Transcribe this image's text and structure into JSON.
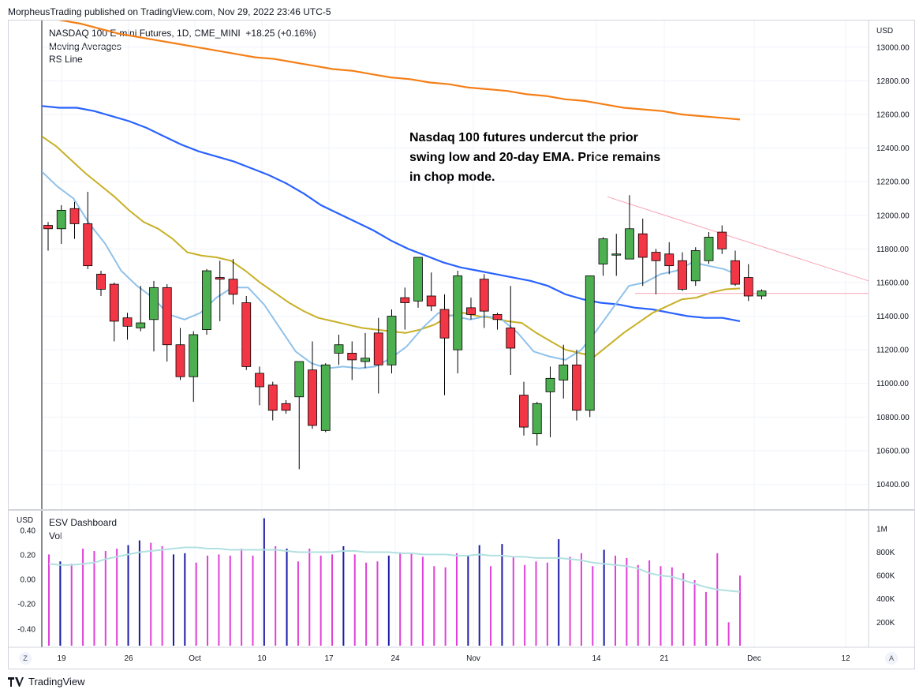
{
  "header": {
    "published": "MorpheusTrading published on TradingView.com, Nov 29, 2022 23:46 UTC-5"
  },
  "legend": {
    "symbol": "NASDAQ 100 E-mini Futures, 1D, CME_MINI",
    "change": "+18.25 (+0.16%)",
    "line2": "Moving Averages",
    "line3": "RS Line"
  },
  "annotation": "Nasdaq 100 futures undercut the prior\nswing low and 20-day EMA.  Price remains\nin chop mode.",
  "lower_legend": {
    "line1": "ESV Dashboard",
    "line2": "Vol"
  },
  "price_currency": "USD",
  "lower_currency": "USD",
  "footer": {
    "brand": "TradingView",
    "left_btn": "Z",
    "right_btn": "A"
  },
  "colors": {
    "up": "#4caf50",
    "down": "#f23645",
    "ema200": "#f57f17",
    "sma50": "#2962ff",
    "ema20": "#c8b026",
    "sma10": "#90c2ea",
    "vol_up": "#1a1aa6",
    "vol_down": "#e040d8",
    "vol_ma": "#b2e0e0",
    "trend": "#f8a4b4"
  },
  "chart_data": [
    {
      "type": "candlestick",
      "x_ticks": [
        "19",
        "26",
        "Oct",
        "10",
        "17",
        "24",
        "Nov",
        "14",
        "21",
        "Dec",
        "12"
      ],
      "y_ticks": [
        "13000.00",
        "12800.00",
        "12600.00",
        "12400.00",
        "12200.00",
        "12000.00",
        "11800.00",
        "11600.00",
        "11400.00",
        "11200.00",
        "11000.00",
        "10800.00",
        "10600.00",
        "10400.00"
      ],
      "ylim": [
        10300,
        13150
      ],
      "candles": [
        [
          11940,
          11960,
          11790,
          11920
        ],
        [
          11920,
          12060,
          11830,
          12030
        ],
        [
          12040,
          12080,
          11860,
          11950
        ],
        [
          11950,
          12140,
          11680,
          11700
        ],
        [
          11650,
          11670,
          11520,
          11560
        ],
        [
          11590,
          11600,
          11250,
          11370
        ],
        [
          11390,
          11420,
          11260,
          11340
        ],
        [
          11330,
          11580,
          11310,
          11360
        ],
        [
          11380,
          11610,
          11190,
          11570
        ],
        [
          11570,
          11590,
          11130,
          11230
        ],
        [
          11230,
          11330,
          11020,
          11040
        ],
        [
          11040,
          11310,
          10890,
          11290
        ],
        [
          11320,
          11680,
          11290,
          11670
        ],
        [
          11630,
          11730,
          11370,
          11620
        ],
        [
          11620,
          11740,
          11470,
          11530
        ],
        [
          11480,
          11520,
          11080,
          11100
        ],
        [
          11060,
          11100,
          10870,
          10980
        ],
        [
          10990,
          11010,
          10780,
          10840
        ],
        [
          10880,
          10900,
          10820,
          10840
        ],
        [
          10920,
          11130,
          10490,
          11130
        ],
        [
          11080,
          11250,
          10730,
          10750
        ],
        [
          10720,
          11120,
          10710,
          11110
        ],
        [
          11180,
          11290,
          11110,
          11230
        ],
        [
          11180,
          11250,
          11020,
          11140
        ],
        [
          11130,
          11300,
          11090,
          11150
        ],
        [
          11300,
          11390,
          10940,
          11110
        ],
        [
          11110,
          11440,
          11060,
          11400
        ],
        [
          11510,
          11570,
          11320,
          11480
        ],
        [
          11490,
          11740,
          11450,
          11750
        ],
        [
          11520,
          11660,
          11430,
          11460
        ],
        [
          11440,
          11530,
          10930,
          11270
        ],
        [
          11200,
          11670,
          11060,
          11640
        ],
        [
          11450,
          11510,
          11380,
          11410
        ],
        [
          11620,
          11650,
          11330,
          11430
        ],
        [
          11410,
          11420,
          11320,
          11380
        ],
        [
          11330,
          11580,
          11050,
          11210
        ],
        [
          10930,
          11010,
          10690,
          10740
        ],
        [
          10700,
          10890,
          10630,
          10880
        ],
        [
          10950,
          11100,
          10680,
          11030
        ],
        [
          11020,
          11230,
          10910,
          11110
        ],
        [
          11110,
          11200,
          10780,
          10840
        ],
        [
          10840,
          11640,
          10800,
          11640
        ],
        [
          11710,
          11870,
          11640,
          11860
        ],
        [
          11770,
          11890,
          11640,
          11770
        ],
        [
          11740,
          12120,
          11740,
          11920
        ],
        [
          11890,
          11980,
          11580,
          11750
        ],
        [
          11780,
          11800,
          11530,
          11730
        ],
        [
          11770,
          11840,
          11650,
          11700
        ],
        [
          11730,
          11780,
          11550,
          11560
        ],
        [
          11610,
          11810,
          11580,
          11790
        ],
        [
          11730,
          11900,
          11710,
          11870
        ],
        [
          11900,
          11940,
          11770,
          11800
        ],
        [
          11730,
          11790,
          11580,
          11590
        ],
        [
          11630,
          11710,
          11490,
          11520
        ],
        [
          11520,
          11560,
          11500,
          11550
        ]
      ],
      "series": [
        {
          "name": "200 EMA",
          "values": [
            13190,
            13160,
            13140,
            13110,
            13080,
            13060,
            13040,
            13020,
            13000,
            12980,
            12960,
            12940,
            12930,
            12910,
            12890,
            12870,
            12860,
            12840,
            12820,
            12810,
            12790,
            12780,
            12760,
            12750,
            12740,
            12720,
            12710,
            12690,
            12680,
            12660,
            12640,
            12630,
            12620,
            12600,
            12590,
            12580,
            12570
          ]
        },
        {
          "name": "50 SMA",
          "values": [
            12650,
            12640,
            12640,
            12620,
            12590,
            12560,
            12520,
            12470,
            12420,
            12380,
            12350,
            12320,
            12280,
            12240,
            12190,
            12130,
            12060,
            12010,
            11960,
            11910,
            11850,
            11800,
            11760,
            11720,
            11690,
            11670,
            11650,
            11630,
            11610,
            11580,
            11530,
            11500,
            11480,
            11470,
            11450,
            11440,
            11420,
            11400,
            11390,
            11390,
            11370
          ]
        },
        {
          "name": "20 EMA",
          "values": [
            12470,
            12410,
            12330,
            12250,
            12180,
            12110,
            12030,
            11960,
            11920,
            11860,
            11780,
            11760,
            11750,
            11730,
            11670,
            11600,
            11540,
            11480,
            11430,
            11390,
            11370,
            11350,
            11330,
            11320,
            11310,
            11300,
            11320,
            11350,
            11400,
            11420,
            11400,
            11390,
            11370,
            11360,
            11300,
            11250,
            11200,
            11180,
            11160,
            11230,
            11300,
            11360,
            11420,
            11460,
            11500,
            11510,
            11540,
            11560,
            11565
          ]
        },
        {
          "name": "10 SMA",
          "values": [
            12260,
            12170,
            12100,
            11950,
            11830,
            11670,
            11580,
            11510,
            11410,
            11380,
            11420,
            11510,
            11570,
            11570,
            11470,
            11330,
            11190,
            11120,
            11090,
            11100,
            11090,
            11100,
            11150,
            11220,
            11330,
            11420,
            11400,
            11380,
            11400,
            11380,
            11300,
            11190,
            11160,
            11140,
            11200,
            11320,
            11450,
            11580,
            11600,
            11650,
            11670,
            11720,
            11700,
            11680,
            11640
          ]
        }
      ]
    },
    {
      "type": "bar",
      "title": "ESV Dashboard",
      "y_ticks_left": [
        "0.40",
        "0.20",
        "0.00",
        "-0.20",
        "-0.40"
      ],
      "y_ticks_right": [
        "1M",
        "800K",
        "600K",
        "400K",
        "200K"
      ],
      "ylim": [
        0,
        1100000
      ],
      "values": [
        780000,
        720000,
        700000,
        830000,
        810000,
        810000,
        830000,
        860000,
        900000,
        880000,
        850000,
        780000,
        790000,
        710000,
        770000,
        780000,
        770000,
        830000,
        770000,
        1090000,
        850000,
        830000,
        720000,
        830000,
        770000,
        780000,
        850000,
        780000,
        710000,
        720000,
        770000,
        800000,
        790000,
        760000,
        680000,
        670000,
        790000,
        770000,
        860000,
        680000,
        870000,
        760000,
        690000,
        720000,
        710000,
        910000,
        760000,
        790000,
        680000,
        820000,
        770000,
        750000,
        690000,
        730000,
        680000,
        670000,
        620000,
        560000,
        460000,
        790000,
        200000,
        600000
      ],
      "up": [
        false,
        true,
        false,
        false,
        false,
        false,
        false,
        true,
        true,
        false,
        false,
        true,
        true,
        false,
        false,
        false,
        false,
        false,
        false,
        true,
        false,
        true,
        false,
        false,
        false,
        false,
        true,
        false,
        false,
        false,
        true,
        false,
        false,
        false,
        false,
        false,
        false,
        true,
        true,
        false,
        true,
        false,
        false,
        false,
        false,
        true,
        false,
        false,
        false,
        true,
        false,
        false,
        false,
        false,
        false,
        false,
        false,
        false,
        false,
        false,
        false,
        false
      ],
      "series": [
        {
          "name": "Vol MA",
          "values": [
            700000,
            690000,
            690000,
            700000,
            710000,
            740000,
            760000,
            780000,
            800000,
            810000,
            820000,
            830000,
            840000,
            840000,
            830000,
            830000,
            820000,
            820000,
            820000,
            820000,
            820000,
            810000,
            800000,
            800000,
            800000,
            800000,
            810000,
            810000,
            800000,
            800000,
            800000,
            790000,
            790000,
            780000,
            780000,
            780000,
            770000,
            770000,
            780000,
            770000,
            770000,
            760000,
            760000,
            750000,
            750000,
            750000,
            740000,
            730000,
            710000,
            700000,
            690000,
            680000,
            660000,
            620000,
            600000,
            590000,
            560000,
            530000,
            500000,
            480000,
            470000,
            460000
          ]
        }
      ]
    }
  ]
}
